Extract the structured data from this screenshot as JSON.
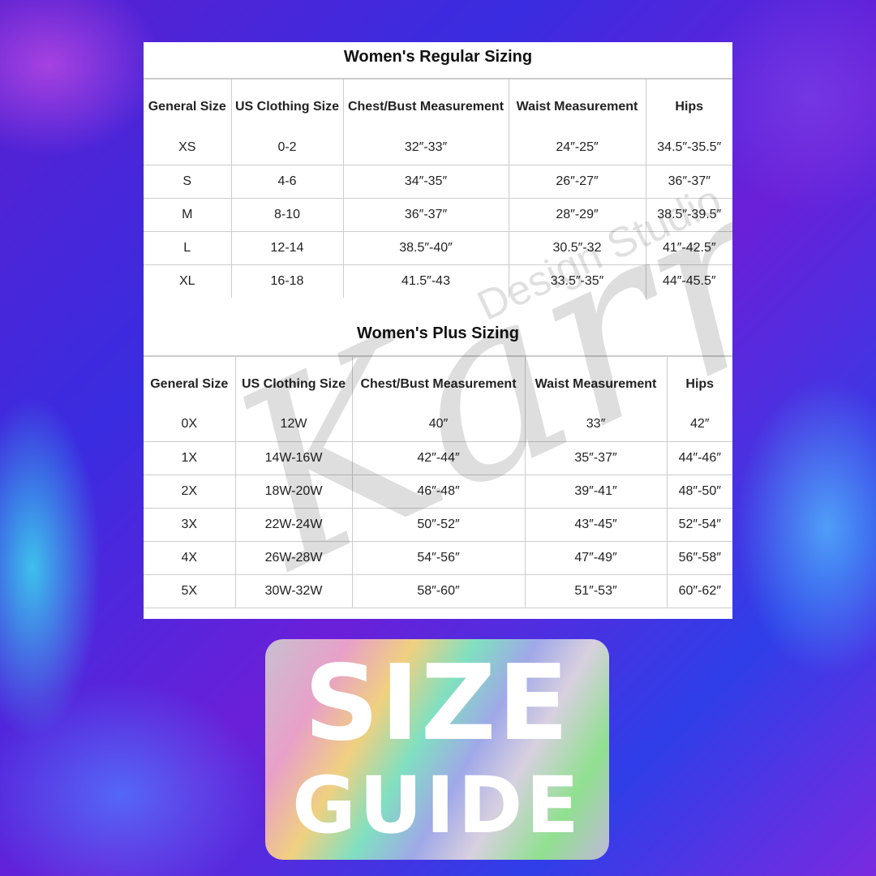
{
  "regular": {
    "title": "Women's Regular Sizing",
    "headers": [
      "General Size",
      "US Clothing Size",
      "Chest/Bust Measurement",
      "Waist Measurement",
      "Hips"
    ],
    "rows": [
      [
        "XS",
        "0-2",
        "32″-33″",
        "24″-25″",
        "34.5″-35.5″"
      ],
      [
        "S",
        "4-6",
        "34″-35″",
        "26″-27″",
        "36″-37″"
      ],
      [
        "M",
        "8-10",
        "36″-37″",
        "28″-29″",
        "38.5″-39.5″"
      ],
      [
        "L",
        "12-14",
        "38.5″-40″",
        "30.5″-32",
        "41″-42.5″"
      ],
      [
        "XL",
        "16-18",
        "41.5″-43",
        "33.5″-35″",
        "44″-45.5″"
      ]
    ]
  },
  "plus": {
    "title": "Women's Plus Sizing",
    "headers": [
      "General Size",
      "US Clothing Size",
      "Chest/Bust Measurement",
      "Waist Measurement",
      "Hips"
    ],
    "rows": [
      [
        "0X",
        "12W",
        "40″",
        "33″",
        "42″"
      ],
      [
        "1X",
        "14W-16W",
        "42″-44″",
        "35″-37″",
        "44″-46″"
      ],
      [
        "2X",
        "18W-20W",
        "46″-48″",
        "39″-41″",
        "48″-50″"
      ],
      [
        "3X",
        "22W-24W",
        "50″-52″",
        "43″-45″",
        "52″-54″"
      ],
      [
        "4X",
        "26W-28W",
        "54″-56″",
        "47″-49″",
        "56″-58″"
      ],
      [
        "5X",
        "30W-32W",
        "58″-60″",
        "51″-53″",
        "60″-62″"
      ]
    ]
  },
  "watermark": {
    "script": "Karma",
    "sub": "Design Studio"
  },
  "badge": {
    "line1": "SIZE",
    "line2": "GUIDE"
  }
}
